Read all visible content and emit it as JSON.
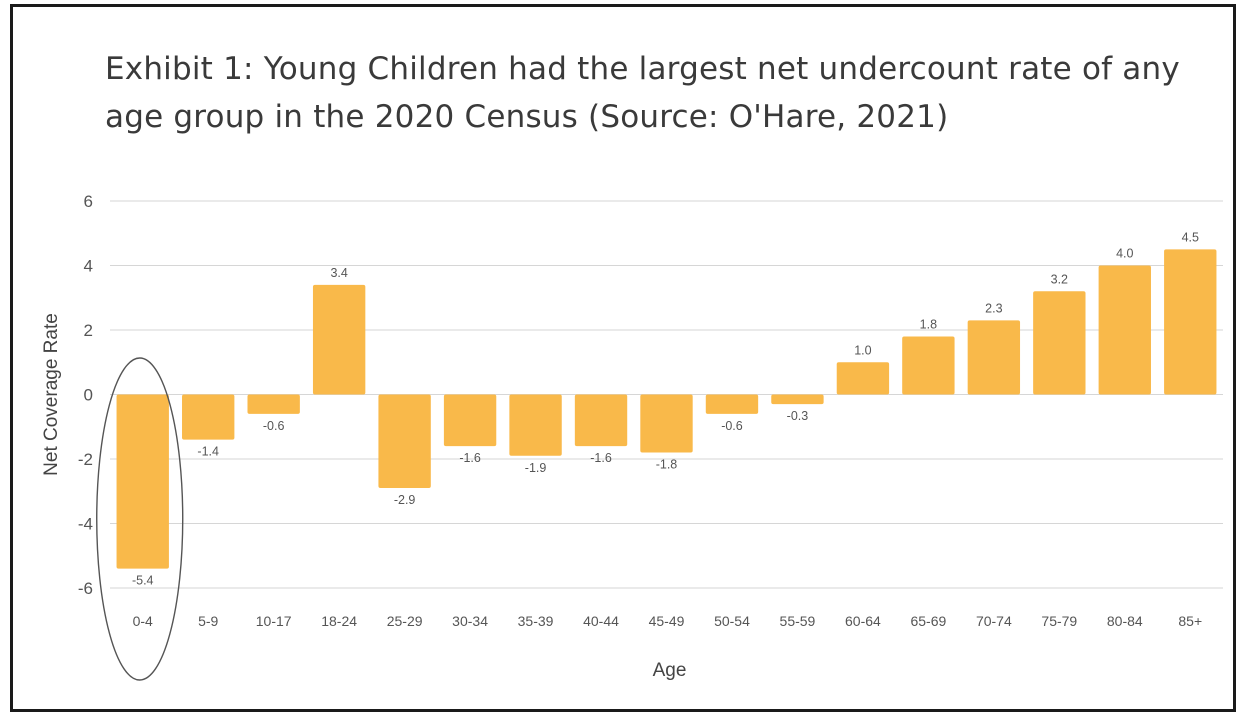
{
  "chart_data": {
    "type": "bar",
    "title": "Exhibit 1: Young Children had the largest net undercount rate of any age group in the 2020 Census (Source: O'Hare, 2021)",
    "xlabel": "Age",
    "ylabel": "Net Coverage Rate",
    "categories": [
      "0-4",
      "5-9",
      "10-17",
      "18-24",
      "25-29",
      "30-34",
      "35-39",
      "40-44",
      "45-49",
      "50-54",
      "55-59",
      "60-64",
      "65-69",
      "70-74",
      "75-79",
      "80-84",
      "85+"
    ],
    "values": [
      -5.4,
      -1.4,
      -0.6,
      3.4,
      -2.9,
      -1.6,
      -1.9,
      -1.6,
      -1.8,
      -0.6,
      -0.3,
      1.0,
      1.8,
      2.3,
      3.2,
      4.0,
      4.5
    ],
    "value_labels": [
      "-5.4",
      "-1.4",
      "-0.6",
      "3.4",
      "-2.9",
      "-1.6",
      "-1.9",
      "-1.6",
      "-1.8",
      "-0.6",
      "-0.3",
      "1.0",
      "1.8",
      "2.3",
      "3.2",
      "4.0",
      "4.5"
    ],
    "yticks": [
      6,
      4,
      2,
      0,
      -2,
      -4,
      -6
    ],
    "ylim": [
      -6,
      6
    ],
    "grid": true,
    "legend": "none",
    "bar_color": "#F9B94A",
    "highlighted_category": "0-4"
  }
}
